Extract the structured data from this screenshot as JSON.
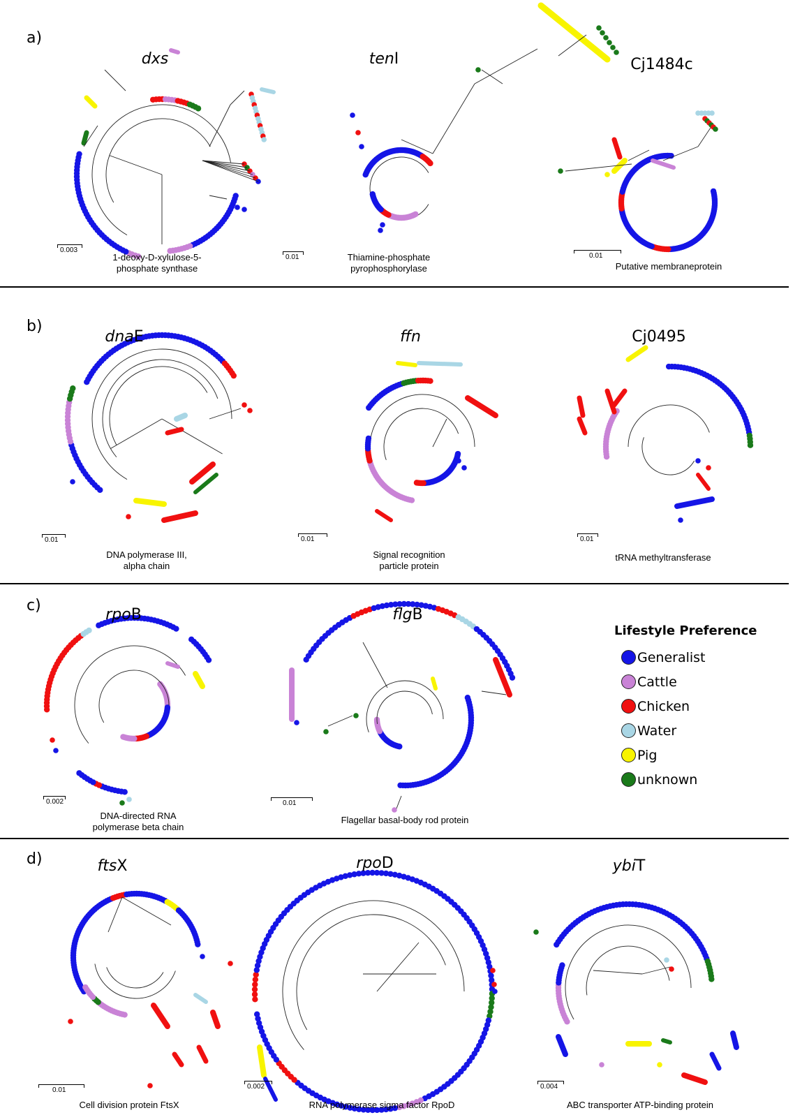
{
  "colors": {
    "Generalist": "#1515e6",
    "Cattle": "#c983d6",
    "Chicken": "#f01010",
    "Water": "#a9d6e5",
    "Pig": "#f8f400",
    "unknown": "#1a7a1a"
  },
  "panels": [
    {
      "letter": "a)"
    },
    {
      "letter": "b)"
    },
    {
      "letter": "c)"
    },
    {
      "letter": "d)"
    }
  ],
  "trees": [
    {
      "gene_italic": "dxs",
      "gene_rest": "",
      "caption1": "1-deoxy-D-xylulose-5-",
      "caption2": "phosphate synthase",
      "scale": "0.003"
    },
    {
      "gene_italic": "ten",
      "gene_rest": "I",
      "caption1": "Thiamine-phosphate",
      "caption2": "pyrophosphorylase",
      "scale": "0.01"
    },
    {
      "gene_italic": "",
      "gene_rest": "Cj1484c",
      "caption1": "Putative membraneprotein",
      "caption2": "",
      "scale": "0.01"
    },
    {
      "gene_italic": "dna",
      "gene_rest": "E",
      "caption1": "DNA polymerase III,",
      "caption2": "alpha chain",
      "scale": "0.01"
    },
    {
      "gene_italic": "ffn",
      "gene_rest": "",
      "caption1": "Signal recognition",
      "caption2": "particle protein",
      "scale": "0.01"
    },
    {
      "gene_italic": "",
      "gene_rest": "Cj0495",
      "caption1": "tRNA methyltransferase",
      "caption2": "",
      "scale": "0.01"
    },
    {
      "gene_italic": "rpo",
      "gene_rest": "B",
      "caption1": "DNA-directed RNA",
      "caption2": "polymerase beta chain",
      "scale": "0.002"
    },
    {
      "gene_italic": "flg",
      "gene_rest": "B",
      "caption1": "Flagellar basal-body rod protein",
      "caption2": "",
      "scale": "0.01"
    },
    {
      "gene_italic": "fts",
      "gene_rest": "X",
      "caption1": "Cell division protein FtsX",
      "caption2": "",
      "scale": "0.01"
    },
    {
      "gene_italic": "rpo",
      "gene_rest": "D",
      "caption1": "RNA polymerase sigma factor RpoD",
      "caption2": "",
      "scale": "0.002"
    },
    {
      "gene_italic": "ybi",
      "gene_rest": "T",
      "caption1": "ABC transporter ATP-binding protein",
      "caption2": "",
      "scale": "0.004"
    }
  ],
  "legend": {
    "title": "Lifestyle Preference",
    "items": [
      {
        "label": "Generalist",
        "color": "#1515e6"
      },
      {
        "label": "Cattle",
        "color": "#c983d6"
      },
      {
        "label": "Chicken",
        "color": "#f01010"
      },
      {
        "label": "Water",
        "color": "#a9d6e5"
      },
      {
        "label": "Pig",
        "color": "#f8f400"
      },
      {
        "label": "unknown",
        "color": "#1a7a1a"
      }
    ]
  }
}
